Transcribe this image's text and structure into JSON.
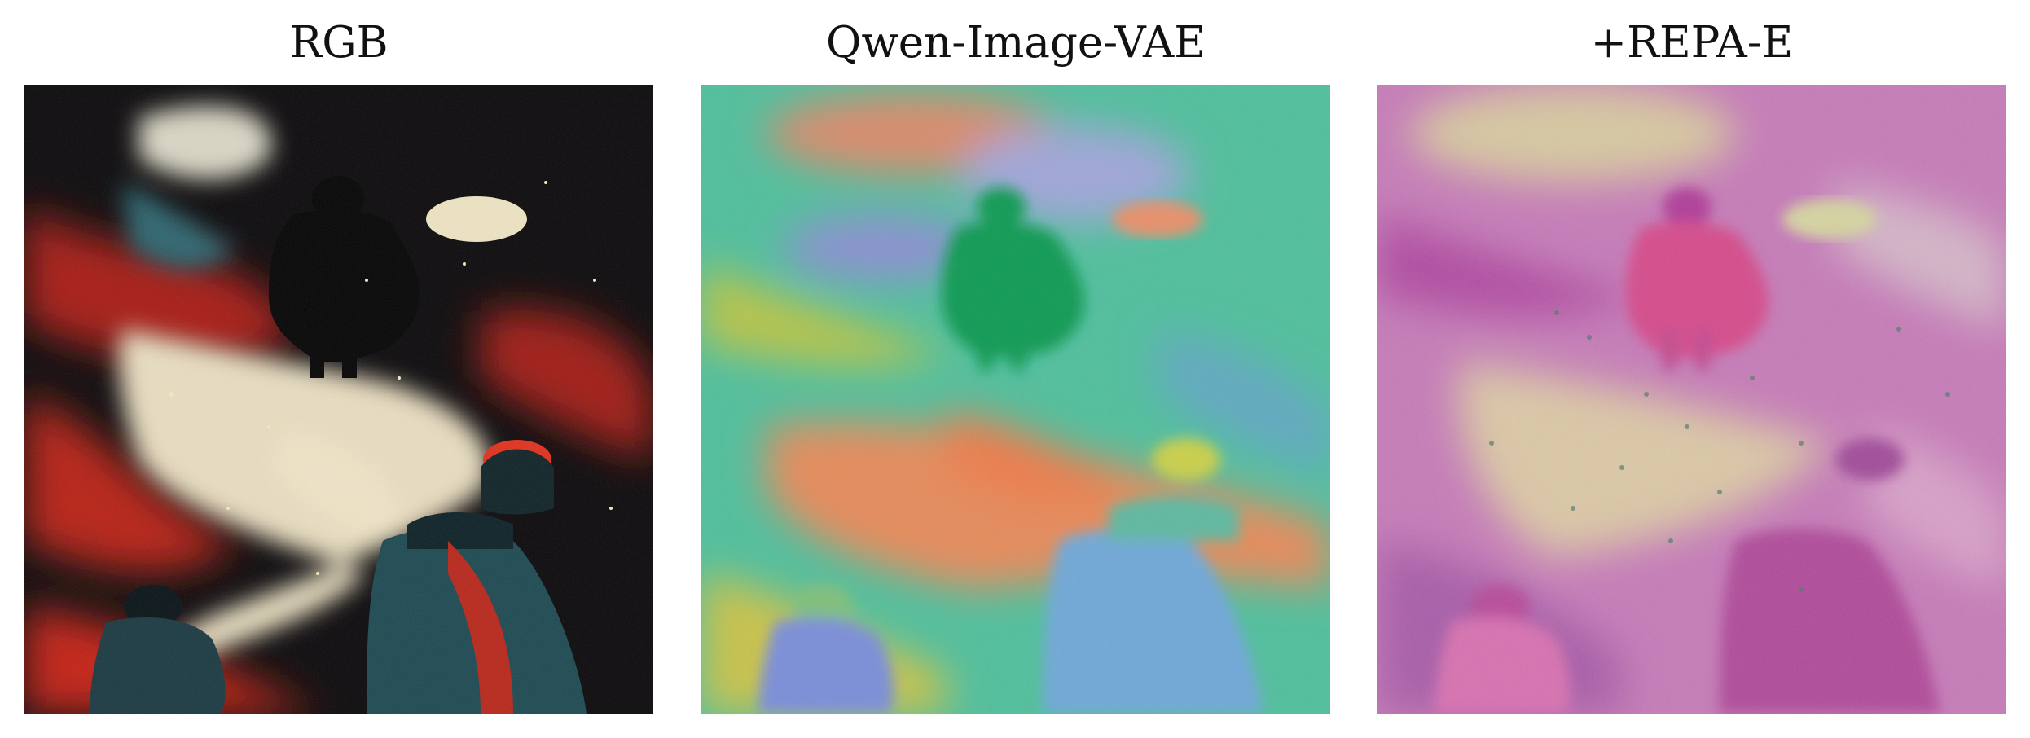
{
  "figure": {
    "panels": [
      {
        "id": "rgb",
        "title": "RGB",
        "image_description": "dark surreal painting of figures walking through red and black swirling clouds",
        "palette": {
          "background": "#0c0a0c",
          "red": "#c82418",
          "cream": "#e8ddc0",
          "teal": "#1f4a55",
          "helmet": "#e0321e"
        }
      },
      {
        "id": "qwen",
        "title": "Qwen-Image-VAE",
        "image_description": "latent feature visualization in teal and green with orange and yellow regions",
        "palette": {
          "background": "#4fbf9c",
          "green": "#0a9a52",
          "orange": "#e58a5a",
          "yellow": "#c9c24a",
          "purple": "#8a8fd0"
        }
      },
      {
        "id": "repa",
        "title": "+REPA-E",
        "image_description": "latent feature visualization in magenta and pink with beige regions",
        "palette": {
          "background": "#c67ab8",
          "magenta": "#b03a98",
          "beige": "#d8c8a0",
          "pink": "#e78ac8",
          "dots": "#4e7a6a"
        }
      }
    ]
  }
}
